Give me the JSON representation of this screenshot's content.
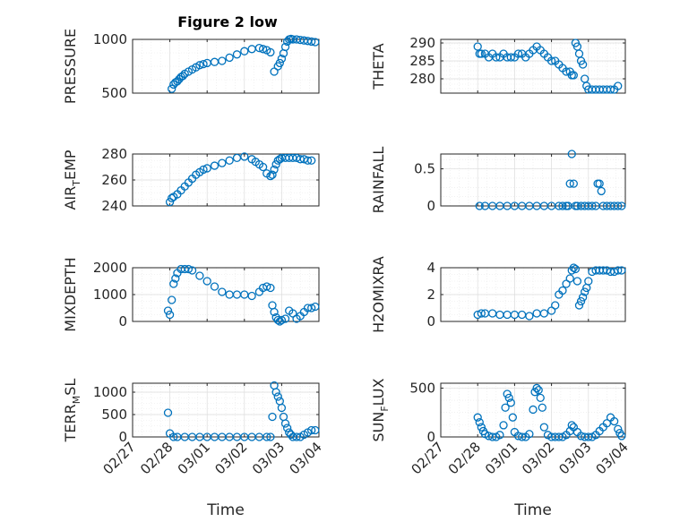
{
  "figure": {
    "title": "Figure 2 low"
  },
  "chart_data": [
    {
      "type": "scatter",
      "ylabel": "PRESSURE",
      "ylim": [
        500,
        1000
      ],
      "yticks": [
        500,
        1000
      ],
      "xticks": [
        "02/27",
        "02/28",
        "03/01",
        "03/02",
        "03/03",
        "03/04"
      ],
      "grid": true,
      "x": [
        1.05,
        1.1,
        1.15,
        1.2,
        1.25,
        1.3,
        1.35,
        1.4,
        1.5,
        1.6,
        1.7,
        1.8,
        1.9,
        2.0,
        2.2,
        2.4,
        2.6,
        2.8,
        3.0,
        3.2,
        3.4,
        3.5,
        3.6,
        3.7,
        3.8,
        3.9,
        3.95,
        4.0,
        4.05,
        4.1,
        4.15,
        4.2,
        4.25,
        4.3,
        4.4,
        4.5,
        4.6,
        4.7,
        4.8,
        4.9
      ],
      "y": [
        540,
        580,
        600,
        610,
        630,
        650,
        660,
        680,
        700,
        720,
        740,
        760,
        770,
        780,
        790,
        800,
        830,
        860,
        890,
        910,
        920,
        910,
        900,
        880,
        700,
        750,
        780,
        820,
        870,
        930,
        980,
        1000,
        1005,
        1000,
        1000,
        995,
        990,
        985,
        980,
        975
      ]
    },
    {
      "type": "scatter",
      "ylabel": "THETA",
      "ylim": [
        276,
        291
      ],
      "yticks": [
        280,
        285,
        290
      ],
      "xticks": [
        "02/27",
        "02/28",
        "03/01",
        "03/02",
        "03/03",
        "03/04"
      ],
      "grid": true,
      "x": [
        1.0,
        1.05,
        1.1,
        1.2,
        1.3,
        1.4,
        1.5,
        1.6,
        1.7,
        1.8,
        1.9,
        2.0,
        2.1,
        2.2,
        2.3,
        2.4,
        2.5,
        2.6,
        2.7,
        2.8,
        2.9,
        3.0,
        3.1,
        3.2,
        3.3,
        3.4,
        3.5,
        3.55,
        3.6,
        3.65,
        3.7,
        3.75,
        3.8,
        3.85,
        3.9,
        3.95,
        4.0,
        4.1,
        4.2,
        4.3,
        4.4,
        4.5,
        4.6,
        4.7,
        4.8
      ],
      "y": [
        289,
        287,
        287,
        287,
        286,
        287,
        286,
        286,
        287,
        286,
        286,
        286,
        287,
        287,
        286,
        287,
        288,
        289,
        288,
        287,
        286,
        285,
        285,
        284,
        283,
        282,
        282,
        281,
        281,
        290,
        289,
        287,
        285,
        284,
        280,
        278,
        277,
        277,
        277,
        277,
        277,
        277,
        277,
        277,
        278
      ]
    },
    {
      "type": "scatter",
      "ylabel": "AIR_TEMP",
      "ylim": [
        240,
        280
      ],
      "yticks": [
        240,
        260,
        280
      ],
      "xticks": [
        "02/27",
        "02/28",
        "03/01",
        "03/02",
        "03/03",
        "03/04"
      ],
      "grid": true,
      "x": [
        1.0,
        1.05,
        1.1,
        1.2,
        1.3,
        1.4,
        1.5,
        1.6,
        1.7,
        1.8,
        1.9,
        2.0,
        2.2,
        2.4,
        2.6,
        2.8,
        3.0,
        3.2,
        3.3,
        3.4,
        3.5,
        3.6,
        3.7,
        3.75,
        3.8,
        3.85,
        3.9,
        3.95,
        4.0,
        4.1,
        4.2,
        4.3,
        4.4,
        4.5,
        4.6,
        4.7,
        4.8
      ],
      "y": [
        243,
        246,
        247,
        249,
        252,
        255,
        258,
        261,
        264,
        266,
        268,
        269,
        271,
        273,
        275,
        277,
        278,
        276,
        274,
        272,
        270,
        265,
        263,
        264,
        268,
        272,
        275,
        276,
        277,
        277,
        277,
        277,
        277,
        276,
        276,
        275,
        275
      ]
    },
    {
      "type": "scatter",
      "ylabel": "RAINFALL",
      "ylim": [
        0,
        0.7
      ],
      "yticks": [
        0,
        0.5
      ],
      "xticks": [
        "02/27",
        "02/28",
        "03/01",
        "03/02",
        "03/03",
        "03/04"
      ],
      "grid": true,
      "x": [
        1.05,
        1.2,
        1.4,
        1.6,
        1.8,
        2.0,
        2.2,
        2.4,
        2.6,
        2.8,
        3.0,
        3.2,
        3.3,
        3.4,
        3.45,
        3.5,
        3.55,
        3.6,
        3.65,
        3.7,
        3.8,
        3.9,
        4.0,
        4.1,
        4.2,
        4.25,
        4.3,
        4.35,
        4.4,
        4.5,
        4.6,
        4.7,
        4.8,
        4.9
      ],
      "y": [
        0,
        0,
        0,
        0,
        0,
        0,
        0,
        0,
        0,
        0,
        0,
        0,
        0,
        0,
        0,
        0.3,
        0.7,
        0.3,
        0,
        0,
        0,
        0,
        0,
        0,
        0,
        0.3,
        0.3,
        0.2,
        0,
        0,
        0,
        0,
        0,
        0
      ]
    },
    {
      "type": "scatter",
      "ylabel": "MIXDEPTH",
      "ylim": [
        0,
        2000
      ],
      "yticks": [
        0,
        1000,
        2000
      ],
      "xticks": [
        "02/27",
        "02/28",
        "03/01",
        "03/02",
        "03/03",
        "03/04"
      ],
      "grid": true,
      "x": [
        0.95,
        1.0,
        1.05,
        1.1,
        1.15,
        1.2,
        1.3,
        1.4,
        1.5,
        1.6,
        1.8,
        2.0,
        2.2,
        2.4,
        2.6,
        2.8,
        3.0,
        3.2,
        3.4,
        3.5,
        3.6,
        3.7,
        3.75,
        3.8,
        3.85,
        3.9,
        3.95,
        4.0,
        4.1,
        4.2,
        4.3,
        4.4,
        4.5,
        4.6,
        4.7,
        4.8,
        4.9
      ],
      "y": [
        400,
        250,
        800,
        1400,
        1600,
        1800,
        1950,
        1950,
        1950,
        1900,
        1700,
        1500,
        1300,
        1100,
        1000,
        1000,
        1000,
        950,
        1100,
        1250,
        1300,
        1250,
        600,
        350,
        150,
        50,
        0,
        50,
        100,
        400,
        300,
        100,
        200,
        350,
        500,
        500,
        550
      ]
    },
    {
      "type": "scatter",
      "ylabel": "H2OMIXRA",
      "ylim": [
        0,
        4
      ],
      "yticks": [
        0,
        2,
        4
      ],
      "xticks": [
        "02/27",
        "02/28",
        "03/01",
        "03/02",
        "03/03",
        "03/04"
      ],
      "grid": true,
      "x": [
        1.0,
        1.1,
        1.2,
        1.4,
        1.6,
        1.8,
        2.0,
        2.2,
        2.4,
        2.6,
        2.8,
        3.0,
        3.1,
        3.2,
        3.3,
        3.4,
        3.5,
        3.55,
        3.6,
        3.65,
        3.7,
        3.75,
        3.8,
        3.85,
        3.9,
        3.95,
        4.0,
        4.1,
        4.2,
        4.3,
        4.4,
        4.5,
        4.6,
        4.7,
        4.8,
        4.9
      ],
      "y": [
        0.5,
        0.6,
        0.6,
        0.6,
        0.5,
        0.5,
        0.5,
        0.5,
        0.4,
        0.6,
        0.6,
        0.8,
        1.2,
        2.0,
        2.3,
        2.8,
        3.2,
        3.8,
        4.0,
        3.9,
        3.0,
        1.2,
        1.5,
        1.8,
        2.2,
        2.5,
        3.0,
        3.7,
        3.8,
        3.8,
        3.8,
        3.8,
        3.7,
        3.7,
        3.8,
        3.8
      ]
    },
    {
      "type": "scatter",
      "ylabel": "TERR_MSL",
      "ylim": [
        0,
        1200
      ],
      "yticks": [
        0,
        500,
        1000
      ],
      "xticks": [
        "02/27",
        "02/28",
        "03/01",
        "03/02",
        "03/03",
        "03/04"
      ],
      "grid": true,
      "x": [
        0.95,
        1.0,
        1.1,
        1.2,
        1.4,
        1.6,
        1.8,
        2.0,
        2.2,
        2.4,
        2.6,
        2.8,
        3.0,
        3.2,
        3.4,
        3.6,
        3.7,
        3.75,
        3.8,
        3.85,
        3.9,
        3.95,
        4.0,
        4.05,
        4.1,
        4.15,
        4.2,
        4.25,
        4.3,
        4.4,
        4.5,
        4.6,
        4.7,
        4.8,
        4.9
      ],
      "y": [
        540,
        80,
        0,
        0,
        0,
        0,
        0,
        0,
        0,
        0,
        0,
        0,
        0,
        0,
        0,
        0,
        0,
        450,
        1150,
        1000,
        900,
        800,
        650,
        450,
        300,
        200,
        100,
        50,
        0,
        0,
        0,
        50,
        100,
        150,
        150
      ]
    },
    {
      "type": "scatter",
      "ylabel": "SUN_FLUX",
      "ylim": [
        0,
        550
      ],
      "yticks": [
        0,
        500
      ],
      "xticks": [
        "02/27",
        "02/28",
        "03/01",
        "03/02",
        "03/03",
        "03/04"
      ],
      "grid": true,
      "x": [
        1.0,
        1.05,
        1.1,
        1.15,
        1.2,
        1.3,
        1.4,
        1.5,
        1.6,
        1.7,
        1.75,
        1.8,
        1.85,
        1.9,
        1.95,
        2.0,
        2.1,
        2.2,
        2.3,
        2.4,
        2.5,
        2.55,
        2.6,
        2.65,
        2.7,
        2.75,
        2.8,
        2.9,
        3.0,
        3.1,
        3.2,
        3.3,
        3.4,
        3.5,
        3.55,
        3.6,
        3.7,
        3.8,
        3.9,
        4.0,
        4.1,
        4.2,
        4.3,
        4.4,
        4.5,
        4.6,
        4.7,
        4.8,
        4.85,
        4.9
      ],
      "y": [
        200,
        150,
        100,
        60,
        30,
        10,
        0,
        0,
        20,
        120,
        300,
        440,
        400,
        350,
        200,
        50,
        10,
        0,
        0,
        30,
        280,
        460,
        500,
        480,
        400,
        300,
        100,
        20,
        0,
        0,
        0,
        0,
        20,
        60,
        120,
        100,
        50,
        10,
        0,
        0,
        0,
        20,
        60,
        100,
        140,
        200,
        160,
        80,
        40,
        10
      ]
    }
  ],
  "axes_text": {
    "xlabel": "Time",
    "ylabels": [
      "PRESSURE",
      "THETA",
      "AIR",
      "RAINFALL",
      "MIXDEPTH",
      "H2OMIXRA",
      "TERR",
      "SUN"
    ],
    "ylabel_subscripts": [
      "",
      "",
      "T",
      "",
      "",
      "",
      "M",
      "F"
    ],
    "ylabel_tails": [
      "",
      "",
      "EMP",
      "",
      "",
      "",
      "SL",
      "LUX"
    ]
  }
}
